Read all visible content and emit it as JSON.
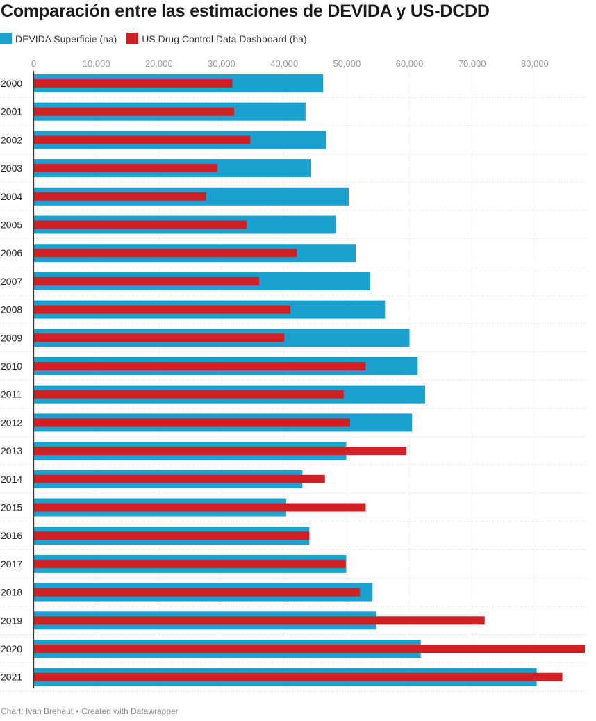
{
  "title": "Comparación entre las estimaciones de DEVIDA y US-DCDD",
  "legend": [
    {
      "label": "DEVIDA Superficie (ha)",
      "color": "#1aa1d0"
    },
    {
      "label": "US Drug Control Data Dashboard (ha)",
      "color": "#d02023"
    }
  ],
  "chart_data": {
    "type": "bar",
    "orientation": "horizontal",
    "title": "Comparación entre las estimaciones de DEVIDA y US-DCDD",
    "xlabel": "",
    "ylabel": "",
    "xlim": [
      0,
      88000
    ],
    "ticks": [
      0,
      10000,
      20000,
      30000,
      40000,
      50000,
      60000,
      70000,
      80000
    ],
    "tick_labels": [
      "0",
      "10,000",
      "20,000",
      "30,000",
      "40,000",
      "50,000",
      "60,000",
      "70,000",
      "80,000"
    ],
    "categories": [
      "2000",
      "2001",
      "2002",
      "2003",
      "2004",
      "2005",
      "2006",
      "2007",
      "2008",
      "2009",
      "2010",
      "2011",
      "2012",
      "2013",
      "2014",
      "2015",
      "2016",
      "2017",
      "2018",
      "2019",
      "2020",
      "2021"
    ],
    "series": [
      {
        "name": "DEVIDA Superficie (ha)",
        "color": "#1aa1d0",
        "values": [
          46200,
          43400,
          46700,
          44200,
          50300,
          48200,
          51400,
          53700,
          56100,
          60000,
          61300,
          62500,
          60400,
          49900,
          42900,
          40300,
          44000,
          49900,
          54100,
          54700,
          61800,
          80300
        ]
      },
      {
        "name": "US Drug Control Data Dashboard (ha)",
        "color": "#d02023",
        "values": [
          31700,
          32000,
          34600,
          29300,
          27500,
          34000,
          42000,
          36000,
          41000,
          40000,
          53000,
          49500,
          50500,
          59500,
          46500,
          53000,
          44000,
          49800,
          52100,
          72000,
          88000,
          84400
        ]
      }
    ],
    "grid": true,
    "legend_position": "top-left"
  },
  "footer": {
    "credit": "Chart: Ivan Brehaut",
    "separator": "•",
    "tool": "Created with Datawrapper"
  }
}
